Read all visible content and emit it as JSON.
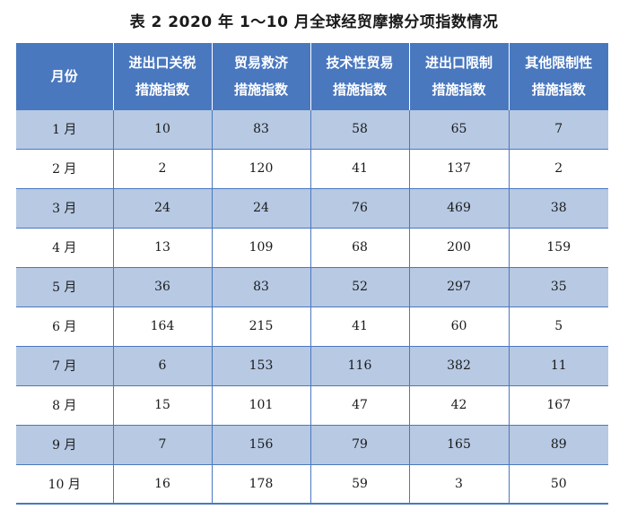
{
  "title": "表 2   2020 年 1～10 月全球经贸摩擦分项指数情况",
  "table": {
    "headers": [
      [
        "月份"
      ],
      [
        "进出口关税",
        "措施指数"
      ],
      [
        "贸易救济",
        "措施指数"
      ],
      [
        "技术性贸易",
        "措施指数"
      ],
      [
        "进出口限制",
        "措施指数"
      ],
      [
        "其他限制性",
        "措施指数"
      ]
    ],
    "rows": [
      [
        "1 月",
        "10",
        "83",
        "58",
        "65",
        "7"
      ],
      [
        "2 月",
        "2",
        "120",
        "41",
        "137",
        "2"
      ],
      [
        "3 月",
        "24",
        "24",
        "76",
        "469",
        "38"
      ],
      [
        "4 月",
        "13",
        "109",
        "68",
        "200",
        "159"
      ],
      [
        "5 月",
        "36",
        "83",
        "52",
        "297",
        "35"
      ],
      [
        "6 月",
        "164",
        "215",
        "41",
        "60",
        "5"
      ],
      [
        "7 月",
        "6",
        "153",
        "116",
        "382",
        "11"
      ],
      [
        "8 月",
        "15",
        "101",
        "47",
        "42",
        "167"
      ],
      [
        "9 月",
        "7",
        "156",
        "79",
        "165",
        "89"
      ],
      [
        "10 月",
        "16",
        "178",
        "59",
        "3",
        "50"
      ]
    ]
  },
  "colors": {
    "header_bg": "#4a78bf",
    "band_bg": "#b7c9e3",
    "grid": "#4a78bf"
  }
}
